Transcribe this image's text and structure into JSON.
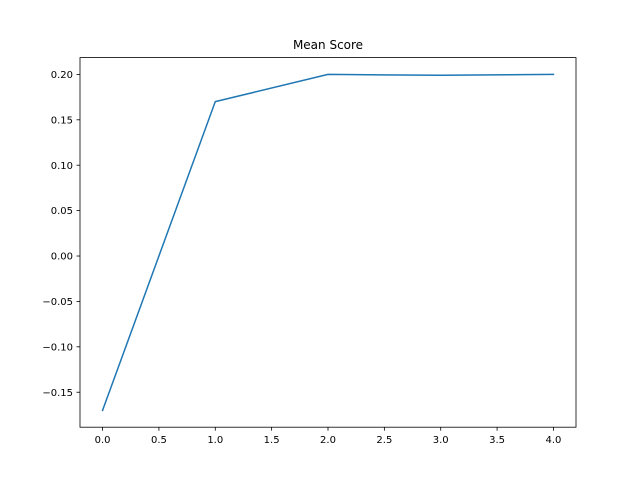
{
  "chart_data": {
    "type": "line",
    "title": "Mean Score",
    "xlabel": "",
    "ylabel": "",
    "x": [
      0,
      1,
      2,
      3,
      4
    ],
    "series": [
      {
        "values": [
          -0.17,
          0.17,
          0.2,
          0.199,
          0.2
        ],
        "color": "#1f77b4"
      }
    ],
    "xlim": [
      -0.2,
      4.2
    ],
    "ylim": [
      -0.1885,
      0.2185
    ],
    "xticks": [
      0.0,
      0.5,
      1.0,
      1.5,
      2.0,
      2.5,
      3.0,
      3.5,
      4.0
    ],
    "xtick_labels": [
      "0.0",
      "0.5",
      "1.0",
      "1.5",
      "2.0",
      "2.5",
      "3.0",
      "3.5",
      "4.0"
    ],
    "yticks": [
      -0.15,
      -0.1,
      -0.05,
      0.0,
      0.05,
      0.1,
      0.15,
      0.2
    ],
    "ytick_labels": [
      "−0.15",
      "−0.10",
      "−0.05",
      "0.00",
      "0.05",
      "0.10",
      "0.15",
      "0.20"
    ],
    "grid": false,
    "legend": "none"
  }
}
